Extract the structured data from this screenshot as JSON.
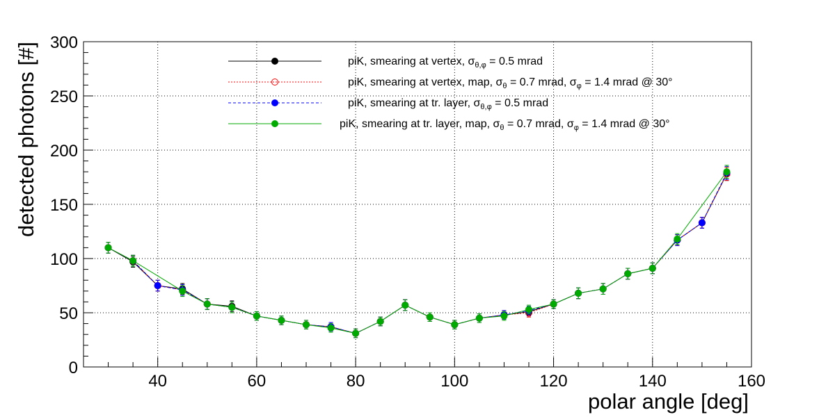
{
  "chart_data": {
    "type": "scatter",
    "xlabel": "polar angle [deg]",
    "ylabel": "detected photons [#]",
    "xlim": [
      25,
      160
    ],
    "ylim": [
      0,
      300
    ],
    "x_ticks": [
      40,
      60,
      80,
      100,
      120,
      140,
      160
    ],
    "y_ticks": [
      0,
      50,
      100,
      150,
      200,
      250,
      300
    ],
    "grid": true,
    "legend_position": "top-center",
    "x": [
      30,
      35,
      40,
      45,
      50,
      55,
      60,
      65,
      70,
      75,
      80,
      85,
      90,
      95,
      100,
      105,
      110,
      115,
      120,
      125,
      130,
      135,
      140,
      145,
      150,
      155
    ],
    "series": [
      {
        "name": "piK, smearing at vertex, σθ,φ = 0.5 mrad",
        "legend_parts": [
          [
            "piK, smearing at vertex, σ",
            ""
          ],
          [
            "θ,φ",
            "sub"
          ],
          [
            " = 0.5 mrad",
            ""
          ]
        ],
        "color": "#000000",
        "line_style": "solid",
        "marker": "filled-circle",
        "values": [
          110,
          97,
          75,
          72,
          58,
          56,
          47,
          43,
          39,
          37,
          31,
          42,
          57,
          46,
          39,
          45,
          48,
          51,
          58,
          68,
          72,
          86,
          91,
          117,
          133,
          178
        ],
        "errors": [
          5,
          5,
          5,
          5,
          5,
          5,
          4,
          4,
          4,
          4,
          4,
          4,
          5,
          4,
          4,
          4,
          4,
          4,
          4,
          5,
          5,
          5,
          5,
          5,
          5,
          6
        ]
      },
      {
        "name": "piK, smearing at vertex, map, σθ = 0.7 mrad,  σφ = 1.4 mrad @ 30°",
        "legend_parts": [
          [
            "piK, smearing at vertex, map, σ",
            ""
          ],
          [
            "θ",
            "sub"
          ],
          [
            " = 0.7 mrad,  σ",
            ""
          ],
          [
            "φ",
            "sub"
          ],
          [
            " = 1.4 mrad @ 30°",
            ""
          ]
        ],
        "color": "#ff0000",
        "line_style": "dotted",
        "marker": "open-circle",
        "values": [
          110,
          98,
          75,
          71,
          58,
          55,
          47,
          43,
          39,
          37,
          31,
          42,
          57,
          46,
          39,
          45,
          48,
          50,
          58,
          68,
          72,
          86,
          91,
          117,
          133,
          178
        ],
        "errors": [
          5,
          5,
          5,
          5,
          5,
          5,
          4,
          4,
          4,
          4,
          4,
          4,
          5,
          4,
          4,
          4,
          4,
          4,
          4,
          5,
          5,
          5,
          5,
          5,
          5,
          6
        ]
      },
      {
        "name": "piK, smearing at tr. layer, σθ,φ = 0.5 mrad",
        "legend_parts": [
          [
            "piK, smearing at tr. layer, σ",
            ""
          ],
          [
            "θ,φ",
            "sub"
          ],
          [
            " = 0.5 mrad",
            ""
          ]
        ],
        "color": "#0000ff",
        "line_style": "dashed",
        "marker": "filled-circle",
        "values": [
          110,
          98,
          75,
          71,
          58,
          55,
          47,
          43,
          39,
          37,
          31,
          42,
          57,
          46,
          39,
          45,
          48,
          52,
          58,
          68,
          72,
          86,
          91,
          117,
          133,
          179
        ],
        "errors": [
          5,
          5,
          5,
          5,
          5,
          5,
          4,
          4,
          4,
          4,
          4,
          4,
          5,
          4,
          4,
          4,
          4,
          4,
          4,
          5,
          5,
          5,
          5,
          5,
          5,
          6
        ]
      },
      {
        "name": "piK, smearing at tr. layer, map, σθ = 0.7 mrad,  σφ = 1.4 mrad @ 30°",
        "legend_parts": [
          [
            "piK, smearing at tr. layer, map, σ",
            ""
          ],
          [
            "θ",
            "sub"
          ],
          [
            " = 0.7 mrad,  σ",
            ""
          ],
          [
            "φ",
            "sub"
          ],
          [
            " = 1.4 mrad @ 30°",
            ""
          ]
        ],
        "color": "#00aa00",
        "line_style": "solid",
        "marker": "filled-circle",
        "values": [
          110,
          98,
          null,
          70,
          58,
          55,
          47,
          43,
          39,
          36,
          31,
          42,
          57,
          46,
          39,
          45,
          47,
          53,
          58,
          68,
          72,
          86,
          91,
          118,
          null,
          180
        ],
        "errors": [
          5,
          5,
          null,
          5,
          5,
          5,
          4,
          4,
          4,
          4,
          4,
          4,
          5,
          4,
          4,
          4,
          4,
          4,
          4,
          5,
          5,
          5,
          5,
          5,
          null,
          6
        ]
      }
    ]
  }
}
